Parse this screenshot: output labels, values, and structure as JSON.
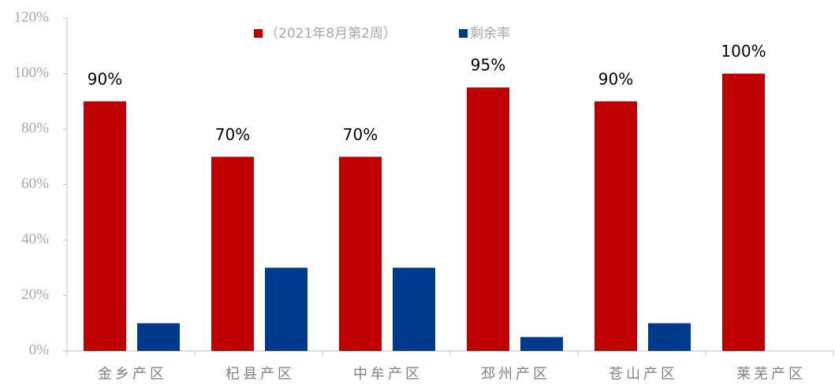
{
  "chart_data": {
    "type": "bar",
    "categories": [
      "金乡产区",
      "杞县产区",
      "中牟产区",
      "邳州产区",
      "苍山产区",
      "莱芜产区"
    ],
    "series": [
      {
        "name": "（2021年8月第2周）",
        "color": "#c00000",
        "values": [
          90,
          70,
          70,
          95,
          90,
          100
        ],
        "value_labels": [
          "90%",
          "70%",
          "70%",
          "95%",
          "90%",
          "100%"
        ]
      },
      {
        "name": "剩余率",
        "color": "#003a8c",
        "values": [
          10,
          30,
          30,
          5,
          10,
          0
        ]
      }
    ],
    "ylim": [
      0,
      120
    ],
    "yticks": [
      {
        "value": 0,
        "label": "0%"
      },
      {
        "value": 20,
        "label": "20%"
      },
      {
        "value": 40,
        "label": "40%"
      },
      {
        "value": 60,
        "label": "60%"
      },
      {
        "value": 80,
        "label": "80%"
      },
      {
        "value": 100,
        "label": "100%"
      },
      {
        "value": 120,
        "label": "120%"
      }
    ],
    "grid": false,
    "legend": "top"
  }
}
